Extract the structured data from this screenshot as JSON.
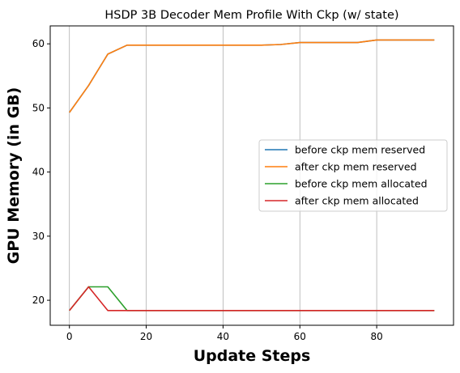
{
  "chart_data": {
    "type": "line",
    "title": "HSDP 3B Decoder Mem Profile With Ckp (w/ state)",
    "xlabel": "Update Steps",
    "ylabel": "GPU Memory (in GB)",
    "xlim": [
      -5,
      100
    ],
    "ylim": [
      16.1,
      62.8
    ],
    "xticks": [
      0,
      20,
      40,
      60,
      80
    ],
    "yticks": [
      20,
      30,
      40,
      50,
      60
    ],
    "grid": "vertical",
    "legend_position": "center-right",
    "x": [
      0,
      5,
      10,
      15,
      20,
      25,
      30,
      35,
      40,
      45,
      50,
      55,
      60,
      65,
      70,
      75,
      80,
      85,
      90,
      95
    ],
    "series": [
      {
        "name": "before ckp mem reserved",
        "color": "#1f77b4",
        "values": [
          49.3,
          53.5,
          58.4,
          59.8,
          59.8,
          59.8,
          59.8,
          59.8,
          59.8,
          59.8,
          59.8,
          59.9,
          60.2,
          60.2,
          60.2,
          60.2,
          60.6,
          60.6,
          60.6,
          60.6
        ]
      },
      {
        "name": "after ckp mem reserved",
        "color": "#ff7f0e",
        "values": [
          49.3,
          53.5,
          58.4,
          59.8,
          59.8,
          59.8,
          59.8,
          59.8,
          59.8,
          59.8,
          59.8,
          59.9,
          60.2,
          60.2,
          60.2,
          60.2,
          60.6,
          60.6,
          60.6,
          60.6
        ]
      },
      {
        "name": "before ckp mem allocated",
        "color": "#2ca02c",
        "values": [
          18.4,
          22.1,
          22.1,
          18.4,
          18.4,
          18.4,
          18.4,
          18.4,
          18.4,
          18.4,
          18.4,
          18.4,
          18.4,
          18.4,
          18.4,
          18.4,
          18.4,
          18.4,
          18.4,
          18.4
        ]
      },
      {
        "name": "after ckp mem allocated",
        "color": "#d62728",
        "values": [
          18.4,
          22.1,
          18.4,
          18.4,
          18.4,
          18.4,
          18.4,
          18.4,
          18.4,
          18.4,
          18.4,
          18.4,
          18.4,
          18.4,
          18.4,
          18.4,
          18.4,
          18.4,
          18.4,
          18.4
        ]
      }
    ]
  }
}
